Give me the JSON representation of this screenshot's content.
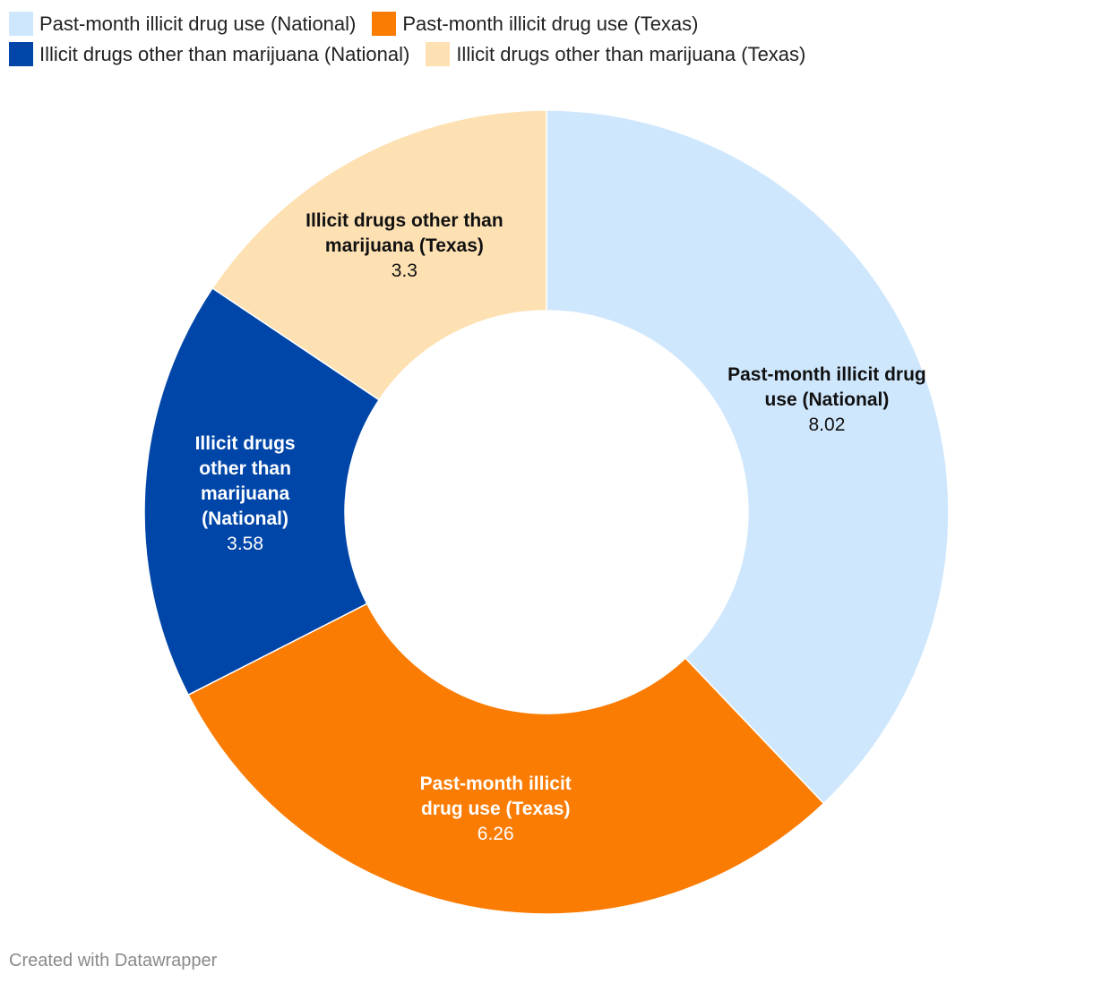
{
  "chart_data": {
    "type": "pie",
    "variant": "donut",
    "legend_position": "top",
    "series": [
      {
        "name": "Past-month illicit drug use (National)",
        "label": "Past-month illicit drug use (National)",
        "value": 8.02,
        "value_label": "8.02",
        "color": "#cfe7fd",
        "text_color": "#111111"
      },
      {
        "name": "Past-month illicit drug use (Texas)",
        "label": "Past-month illicit drug use (Texas)",
        "value": 6.26,
        "value_label": "6.26",
        "color": "#fb7c03",
        "text_color": "#ffffff"
      },
      {
        "name": "Illicit drugs other than marijuana (National)",
        "label": "Illicit drugs other than marijuana (National)",
        "value": 3.58,
        "value_label": "3.58",
        "color": "#0046a8",
        "text_color": "#ffffff"
      },
      {
        "name": "Illicit drugs other than marijuana (Texas)",
        "label": "Illicit drugs other than marijuana (Texas)",
        "value": 3.3,
        "value_label": "3.3",
        "color": "#fde1b3",
        "text_color": "#111111"
      }
    ]
  },
  "footer": {
    "credit": "Created with Datawrapper"
  }
}
